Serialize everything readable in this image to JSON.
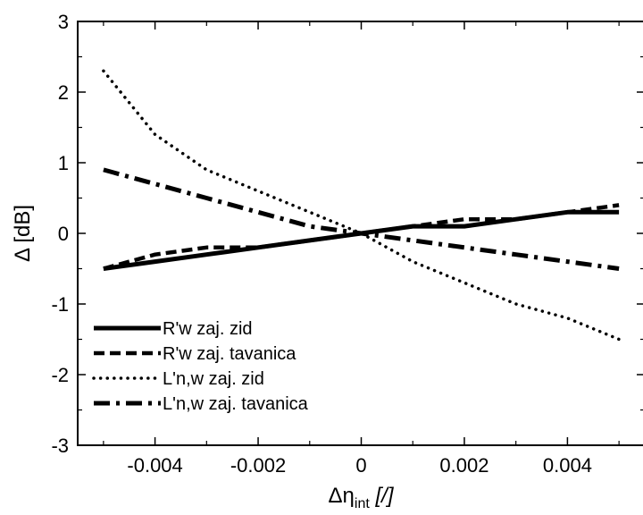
{
  "chart_data": {
    "type": "line",
    "title": "",
    "xlabel": {
      "main": "Δη",
      "sub": "int",
      "unit": " [/]"
    },
    "ylabel": "Δ [dB]",
    "xlim": [
      -0.0055,
      0.0055
    ],
    "ylim": [
      -3,
      3
    ],
    "xticks": [
      -0.004,
      -0.002,
      0,
      0.002,
      0.004
    ],
    "xtick_labels": [
      "-0.004",
      "-0.002",
      "0",
      "0.002",
      "0.004"
    ],
    "yticks": [
      -3,
      -2,
      -1,
      0,
      1,
      2,
      3
    ],
    "ytick_labels": [
      "-3",
      "-2",
      "-1",
      "0",
      "1",
      "2",
      "3"
    ],
    "grid": false,
    "legend_position": "bottom-left",
    "x": [
      -0.005,
      -0.004,
      -0.003,
      -0.002,
      -0.001,
      0,
      0.001,
      0.002,
      0.003,
      0.004,
      0.005
    ],
    "series": [
      {
        "name": "R'w zaj. zid",
        "style": "solid",
        "values": [
          -0.5,
          -0.4,
          -0.3,
          -0.2,
          -0.1,
          0,
          0.1,
          0.1,
          0.2,
          0.3,
          0.3
        ]
      },
      {
        "name": "R'w zaj. tavanica",
        "style": "dashed",
        "values": [
          -0.5,
          -0.3,
          -0.2,
          -0.2,
          -0.1,
          0,
          0.1,
          0.2,
          0.2,
          0.3,
          0.4
        ]
      },
      {
        "name": "L'n,w zaj. zid",
        "style": "dotted",
        "values": [
          2.3,
          1.4,
          0.9,
          0.6,
          0.3,
          0,
          -0.4,
          -0.7,
          -1.0,
          -1.2,
          -1.5
        ]
      },
      {
        "name": "L'n,w zaj. tavanica",
        "style": "dashdot",
        "values": [
          0.9,
          0.7,
          0.5,
          0.3,
          0.1,
          0,
          -0.1,
          -0.2,
          -0.3,
          -0.4,
          -0.5
        ]
      }
    ]
  }
}
